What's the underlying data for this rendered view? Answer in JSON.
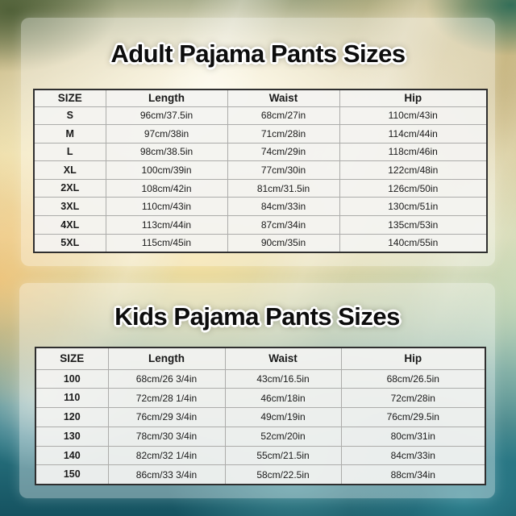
{
  "sections": [
    {
      "title": "Adult Pajama Pants Sizes",
      "table": {
        "headers": [
          "SIZE",
          "Length",
          "Waist",
          "Hip"
        ],
        "rows": [
          [
            "S",
            "96cm/37.5in",
            "68cm/27in",
            "110cm/43in"
          ],
          [
            "M",
            "97cm/38in",
            "71cm/28in",
            "114cm/44in"
          ],
          [
            "L",
            "98cm/38.5in",
            "74cm/29in",
            "118cm/46in"
          ],
          [
            "XL",
            "100cm/39in",
            "77cm/30in",
            "122cm/48in"
          ],
          [
            "2XL",
            "108cm/42in",
            "81cm/31.5in",
            "126cm/50in"
          ],
          [
            "3XL",
            "110cm/43in",
            "84cm/33in",
            "130cm/51in"
          ],
          [
            "4XL",
            "113cm/44in",
            "87cm/34in",
            "135cm/53in"
          ],
          [
            "5XL",
            "115cm/45in",
            "90cm/35in",
            "140cm/55in"
          ]
        ]
      }
    },
    {
      "title": "Kids Pajama Pants Sizes",
      "table": {
        "headers": [
          "SIZE",
          "Length",
          "Waist",
          "Hip"
        ],
        "rows": [
          [
            "100",
            "68cm/26 3/4in",
            "43cm/16.5in",
            "68cm/26.5in"
          ],
          [
            "110",
            "72cm/28 1/4in",
            "46cm/18in",
            "72cm/28in"
          ],
          [
            "120",
            "76cm/29 3/4in",
            "49cm/19in",
            "76cm/29.5in"
          ],
          [
            "130",
            "78cm/30 3/4in",
            "52cm/20in",
            "80cm/31in"
          ],
          [
            "140",
            "82cm/32 1/4in",
            "55cm/21.5in",
            "84cm/33in"
          ],
          [
            "150",
            "86cm/33 3/4in",
            "58cm/22.5in",
            "88cm/34in"
          ]
        ]
      }
    }
  ],
  "colors": {
    "title_text": "#0d0d0d",
    "title_outline": "#ffffff",
    "panel_overlay": "rgba(255,255,255,0.36)",
    "table_cell_bg": "#f3f3f1",
    "table_outer_border": "#2f2f2f",
    "table_inner_border": "#acacaa",
    "bg_gold": "#e9dcab",
    "bg_teal": "#27727f",
    "bg_olive": "#6e7a50"
  }
}
